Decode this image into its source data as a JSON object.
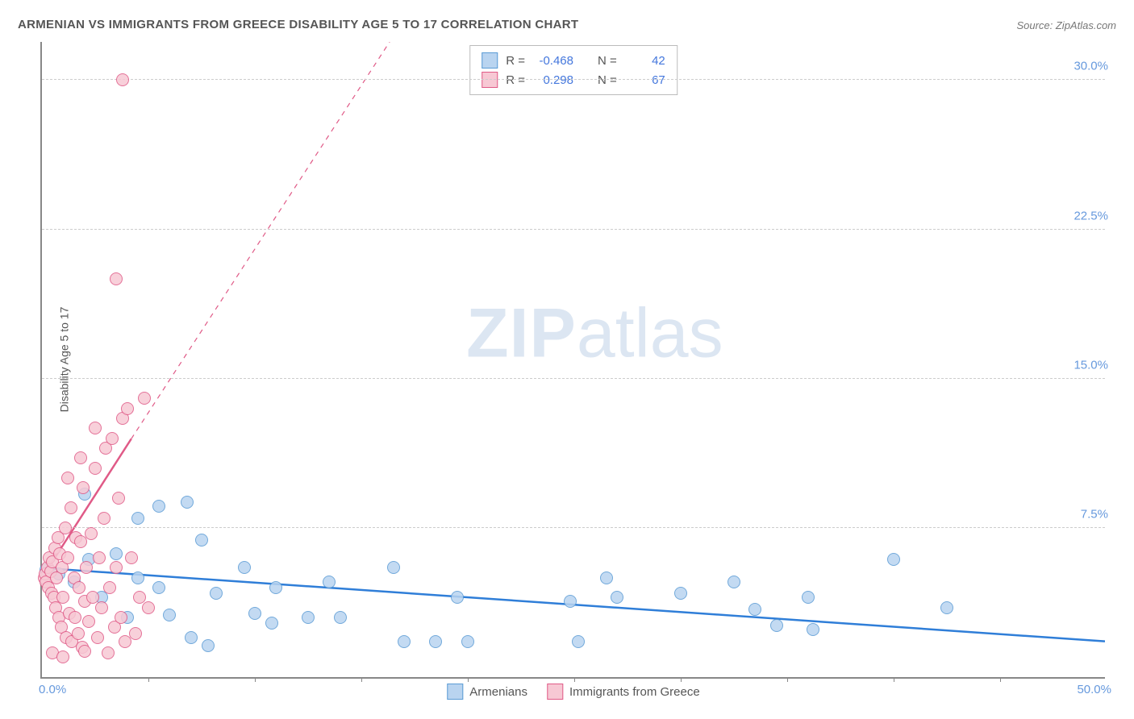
{
  "title": "ARMENIAN VS IMMIGRANTS FROM GREECE DISABILITY AGE 5 TO 17 CORRELATION CHART",
  "source": "Source: ZipAtlas.com",
  "ylabel": "Disability Age 5 to 17",
  "watermark_a": "ZIP",
  "watermark_b": "atlas",
  "chart": {
    "type": "scatter",
    "xlim": [
      0,
      50
    ],
    "ylim": [
      0,
      32
    ],
    "yticks": [
      7.5,
      15.0,
      22.5,
      30.0
    ],
    "ytick_labels": [
      "7.5%",
      "15.0%",
      "22.5%",
      "30.0%"
    ],
    "xtick_origin": "0.0%",
    "xtick_max": "50.0%",
    "xtick_marks": [
      5,
      10,
      15,
      20,
      25,
      30,
      35,
      40,
      45
    ],
    "grid_color": "#cccccc",
    "axis_color": "#888888",
    "tick_label_color": "#6699dd",
    "background": "#ffffff",
    "marker_radius": 8,
    "series": [
      {
        "name": "Armenians",
        "fill": "#b9d4f0",
        "stroke": "#5a9bd5",
        "trend": {
          "x1": 0,
          "y1": 5.5,
          "x2": 50,
          "y2": 1.8,
          "color": "#2f7ed8",
          "width": 2.5,
          "dash": "none"
        },
        "points": [
          [
            0.2,
            5.4
          ],
          [
            0.8,
            5.2
          ],
          [
            1.5,
            4.8
          ],
          [
            2.2,
            5.9
          ],
          [
            2.8,
            4.0
          ],
          [
            3.5,
            6.2
          ],
          [
            4.5,
            5.0
          ],
          [
            4.0,
            3.0
          ],
          [
            5.5,
            4.5
          ],
          [
            5.5,
            8.6
          ],
          [
            6.0,
            3.1
          ],
          [
            6.8,
            8.8
          ],
          [
            7.0,
            2.0
          ],
          [
            7.5,
            6.9
          ],
          [
            7.8,
            1.6
          ],
          [
            8.2,
            4.2
          ],
          [
            9.5,
            5.5
          ],
          [
            10.0,
            3.2
          ],
          [
            10.8,
            2.7
          ],
          [
            11.0,
            4.5
          ],
          [
            12.5,
            3.0
          ],
          [
            13.5,
            4.8
          ],
          [
            14.0,
            3.0
          ],
          [
            16.5,
            5.5
          ],
          [
            17.0,
            1.8
          ],
          [
            18.5,
            1.8
          ],
          [
            19.5,
            4.0
          ],
          [
            20.0,
            1.8
          ],
          [
            24.8,
            3.8
          ],
          [
            25.2,
            1.8
          ],
          [
            26.5,
            5.0
          ],
          [
            27.0,
            4.0
          ],
          [
            30.0,
            4.2
          ],
          [
            32.5,
            4.8
          ],
          [
            33.5,
            3.4
          ],
          [
            34.5,
            2.6
          ],
          [
            36.2,
            2.4
          ],
          [
            36.0,
            4.0
          ],
          [
            40.0,
            5.9
          ],
          [
            42.5,
            3.5
          ],
          [
            2.0,
            9.2
          ],
          [
            4.5,
            8.0
          ]
        ]
      },
      {
        "name": "Immigrants from Greece",
        "fill": "#f7c8d4",
        "stroke": "#e05a87",
        "trend": {
          "x1": 0,
          "y1": 5.0,
          "x2": 4.2,
          "y2": 12.0,
          "color": "#e05a87",
          "width": 2.5,
          "dash": "none",
          "ext_x2": 20.0,
          "ext_y2": 38.0,
          "ext_dash": "6 6"
        },
        "points": [
          [
            0.1,
            5.0
          ],
          [
            0.15,
            5.2
          ],
          [
            0.2,
            4.8
          ],
          [
            0.25,
            5.5
          ],
          [
            0.3,
            4.5
          ],
          [
            0.35,
            6.0
          ],
          [
            0.4,
            5.3
          ],
          [
            0.45,
            4.2
          ],
          [
            0.5,
            5.8
          ],
          [
            0.55,
            4.0
          ],
          [
            0.6,
            6.5
          ],
          [
            0.65,
            3.5
          ],
          [
            0.7,
            5.0
          ],
          [
            0.75,
            7.0
          ],
          [
            0.8,
            3.0
          ],
          [
            0.85,
            6.2
          ],
          [
            0.9,
            2.5
          ],
          [
            0.95,
            5.5
          ],
          [
            1.0,
            4.0
          ],
          [
            1.1,
            7.5
          ],
          [
            1.15,
            2.0
          ],
          [
            1.2,
            6.0
          ],
          [
            1.3,
            3.2
          ],
          [
            1.35,
            8.5
          ],
          [
            1.4,
            1.8
          ],
          [
            1.5,
            5.0
          ],
          [
            1.55,
            3.0
          ],
          [
            1.6,
            7.0
          ],
          [
            1.7,
            2.2
          ],
          [
            1.75,
            4.5
          ],
          [
            1.8,
            6.8
          ],
          [
            1.9,
            1.5
          ],
          [
            1.95,
            9.5
          ],
          [
            2.0,
            3.8
          ],
          [
            2.1,
            5.5
          ],
          [
            2.2,
            2.8
          ],
          [
            2.3,
            7.2
          ],
          [
            2.4,
            4.0
          ],
          [
            2.5,
            10.5
          ],
          [
            2.6,
            2.0
          ],
          [
            2.7,
            6.0
          ],
          [
            2.8,
            3.5
          ],
          [
            2.9,
            8.0
          ],
          [
            3.0,
            11.5
          ],
          [
            3.1,
            1.2
          ],
          [
            3.2,
            4.5
          ],
          [
            3.3,
            12.0
          ],
          [
            3.4,
            2.5
          ],
          [
            3.5,
            5.5
          ],
          [
            3.6,
            9.0
          ],
          [
            3.7,
            3.0
          ],
          [
            3.8,
            13.0
          ],
          [
            3.9,
            1.8
          ],
          [
            4.0,
            13.5
          ],
          [
            4.2,
            6.0
          ],
          [
            4.4,
            2.2
          ],
          [
            4.6,
            4.0
          ],
          [
            4.8,
            14.0
          ],
          [
            5.0,
            3.5
          ],
          [
            1.2,
            10.0
          ],
          [
            1.8,
            11.0
          ],
          [
            2.5,
            12.5
          ],
          [
            3.5,
            20.0
          ],
          [
            3.8,
            30.0
          ],
          [
            0.5,
            1.2
          ],
          [
            1.0,
            1.0
          ],
          [
            2.0,
            1.3
          ]
        ]
      }
    ]
  },
  "stats": {
    "rows": [
      {
        "swatch_fill": "#b9d4f0",
        "swatch_stroke": "#5a9bd5",
        "r_label": "R =",
        "r_val": "-0.468",
        "n_label": "N =",
        "n_val": "42"
      },
      {
        "swatch_fill": "#f7c8d4",
        "swatch_stroke": "#e05a87",
        "r_label": "R =",
        "r_val": "0.298",
        "n_label": "N =",
        "n_val": "67"
      }
    ]
  },
  "legend": {
    "items": [
      {
        "swatch_fill": "#b9d4f0",
        "swatch_stroke": "#5a9bd5",
        "label": "Armenians"
      },
      {
        "swatch_fill": "#f7c8d4",
        "swatch_stroke": "#e05a87",
        "label": "Immigrants from Greece"
      }
    ]
  }
}
